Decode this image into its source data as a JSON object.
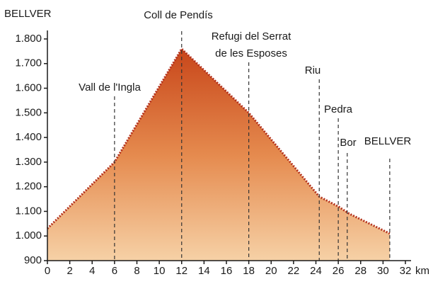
{
  "chart_data": {
    "type": "area",
    "start_label": "BELLVER",
    "x_label": "km",
    "x": [
      0,
      6,
      12,
      18,
      24.3,
      26,
      27,
      30.6
    ],
    "values": [
      1030,
      1300,
      1760,
      1500,
      1160,
      1120,
      1090,
      1010
    ],
    "color": "#c8461a",
    "line_color": "#b3301c",
    "xlim": [
      0,
      32
    ],
    "ylim": [
      900,
      1800
    ],
    "xticks": [
      0,
      2,
      4,
      6,
      8,
      10,
      12,
      14,
      16,
      18,
      20,
      22,
      24,
      26,
      28,
      30,
      32
    ],
    "yticks": [
      900,
      {
        "value": 1000,
        "label": "1.000"
      },
      {
        "value": 1100,
        "label": "1.100"
      },
      {
        "value": 1200,
        "label": "1.200"
      },
      {
        "value": 1300,
        "label": "1.300"
      },
      {
        "value": 1400,
        "label": "1.400"
      },
      {
        "value": 1500,
        "label": "1.500"
      },
      {
        "value": 1600,
        "label": "1.600"
      },
      {
        "value": 1700,
        "label": "1.700"
      },
      {
        "value": 1800,
        "label": "1.800"
      }
    ],
    "waypoints": [
      {
        "lines": [
          "Vall de l'Ingla"
        ],
        "x": 6
      },
      {
        "lines": [
          "Coll de Pendís"
        ],
        "x": 12
      },
      {
        "lines": [
          "Refugi del Serrat",
          "de les Esposes"
        ],
        "x": 18
      },
      {
        "lines": [
          "Riu"
        ],
        "x": 24.3
      },
      {
        "lines": [
          "Pedra"
        ],
        "x": 26
      },
      {
        "lines": [
          "Bor"
        ],
        "x": 26.8
      },
      {
        "lines": [
          "BELLVER"
        ],
        "x": 30.6
      }
    ]
  }
}
